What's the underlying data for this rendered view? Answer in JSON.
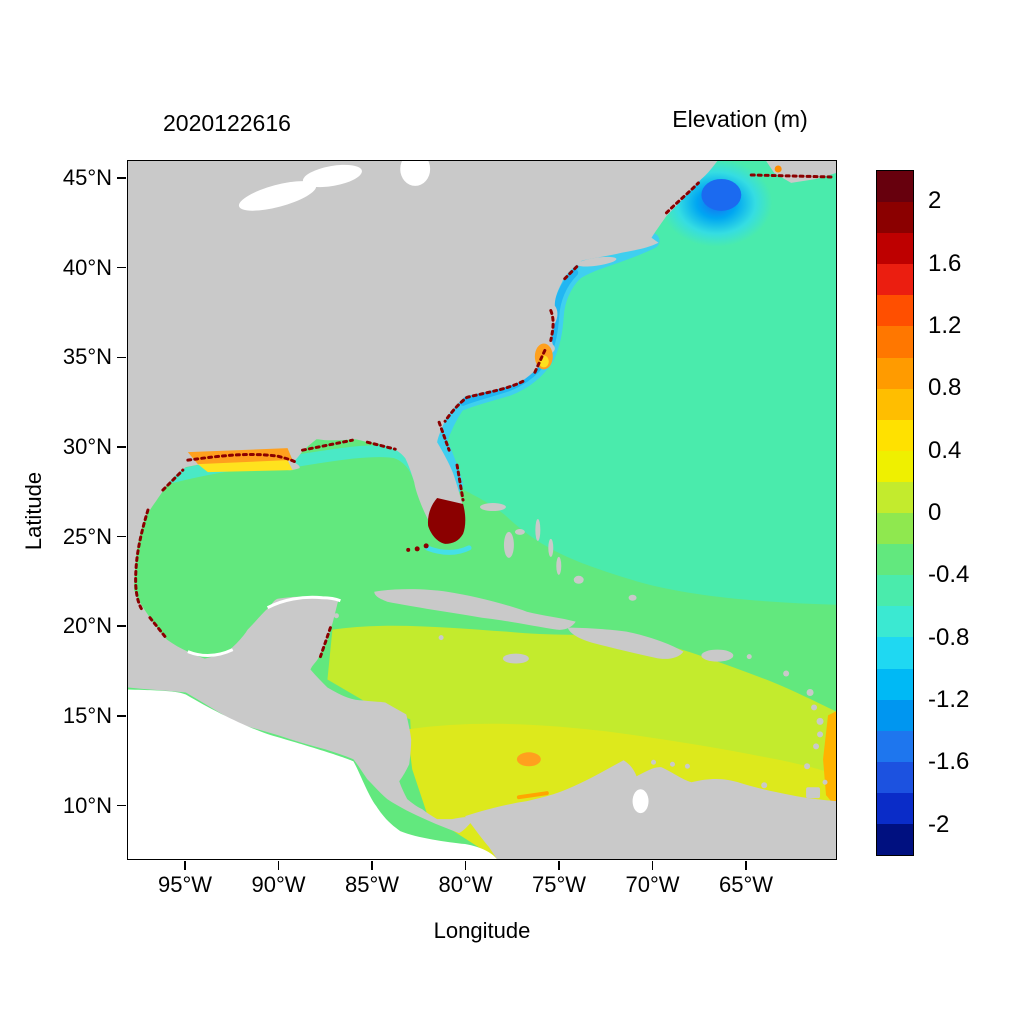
{
  "header": {
    "date": "2020122616",
    "title": "Elevation (m)"
  },
  "axes": {
    "x": {
      "label": "Longitude",
      "ticks": [
        "95°W",
        "90°W",
        "85°W",
        "80°W",
        "75°W",
        "70°W",
        "65°W"
      ]
    },
    "y": {
      "label": "Latitude",
      "ticks": [
        "45°N",
        "40°N",
        "35°N",
        "30°N",
        "25°N",
        "20°N",
        "15°N",
        "10°N"
      ]
    }
  },
  "colorbar": {
    "tick_labels": [
      "2",
      "1.6",
      "1.2",
      "0.8",
      "0.4",
      "0",
      "-0.4",
      "-0.8",
      "-1.2",
      "-1.6",
      "-2"
    ],
    "tick_values": [
      2,
      1.6,
      1.2,
      0.8,
      0.4,
      0,
      -0.4,
      -0.8,
      -1.2,
      -1.6,
      -2
    ],
    "range_min": -2.2,
    "range_max": 2.2,
    "segment_colors_top_to_bottom": [
      "#67000D",
      "#8B0000",
      "#BE0000",
      "#EB1E10",
      "#FF4F00",
      "#FF7700",
      "#FF9B00",
      "#FFBE00",
      "#FFE100",
      "#EFF000",
      "#C3EB2D",
      "#8FE84F",
      "#62E87E",
      "#4AEBAC",
      "#3BE9D2",
      "#1FD8F2",
      "#00B9F5",
      "#0096F0",
      "#1E76EE",
      "#1C52E0",
      "#0A2CC8",
      "#001080"
    ]
  },
  "map_colors": {
    "land": "#C9C9C9",
    "no_data": "#FFFFFF",
    "open_atlantic": "#4AEBAC",
    "gulf_and_central_atlantic": "#62E87E",
    "caribbean": "#C3EB2D",
    "southern_caribbean": "#DDE91C",
    "coastal_cold_band": "#3ECDF2",
    "gulf_of_maine_low": "#1B6AF0",
    "surge_high": "#8B0000",
    "shelf_high": "#FFA01E"
  },
  "chart_data": {
    "type": "heatmap",
    "title": "Elevation (m)",
    "timestamp_label": "2020122616",
    "xlabel": "Longitude",
    "ylabel": "Latitude",
    "x_ticks": [
      "95°W",
      "90°W",
      "85°W",
      "80°W",
      "75°W",
      "70°W",
      "65°W"
    ],
    "y_ticks": [
      "45°N",
      "40°N",
      "35°N",
      "30°N",
      "25°N",
      "20°N",
      "15°N",
      "10°N"
    ],
    "lon_range_deg": [
      -98,
      -60
    ],
    "lat_range_deg": [
      7,
      46
    ],
    "colorbar_range_m": [
      -2.2,
      2.2
    ],
    "colorbar_tick_values": [
      2,
      1.6,
      1.2,
      0.8,
      0.4,
      0,
      -0.4,
      -0.8,
      -1.2,
      -1.6,
      -2
    ],
    "legend_position": "right",
    "grid": false,
    "regions": [
      {
        "region": "Northwest Atlantic open ocean (Gulf Stream region, north of ~25N)",
        "elevation_m": -0.3
      },
      {
        "region": "Gulf of Maine / Nova Scotia negative anomaly",
        "elevation_m": -1.2
      },
      {
        "region": "US East Coast shelf band, New Jersey to Florida",
        "elevation_m": -0.7
      },
      {
        "region": "Pamlico Sound / North Carolina coast patch",
        "elevation_m": 1.0
      },
      {
        "region": "Gulf of Mexico interior",
        "elevation_m": -0.1
      },
      {
        "region": "Louisiana-Texas shelf patch",
        "elevation_m": 0.8
      },
      {
        "region": "South Florida / Everglades flooded cells",
        "elevation_m": 2.2
      },
      {
        "region": "Central Atlantic / Bahamas",
        "elevation_m": -0.1
      },
      {
        "region": "Northern Caribbean Sea",
        "elevation_m": 0.2
      },
      {
        "region": "Southern Caribbean off Colombia / Venezuela",
        "elevation_m": 0.4
      },
      {
        "region": "Far southeastern map edge",
        "elevation_m": 0.8
      },
      {
        "region": "Scattered wet/dry coastal cells along most shorelines",
        "elevation_m": 2.0
      }
    ]
  }
}
